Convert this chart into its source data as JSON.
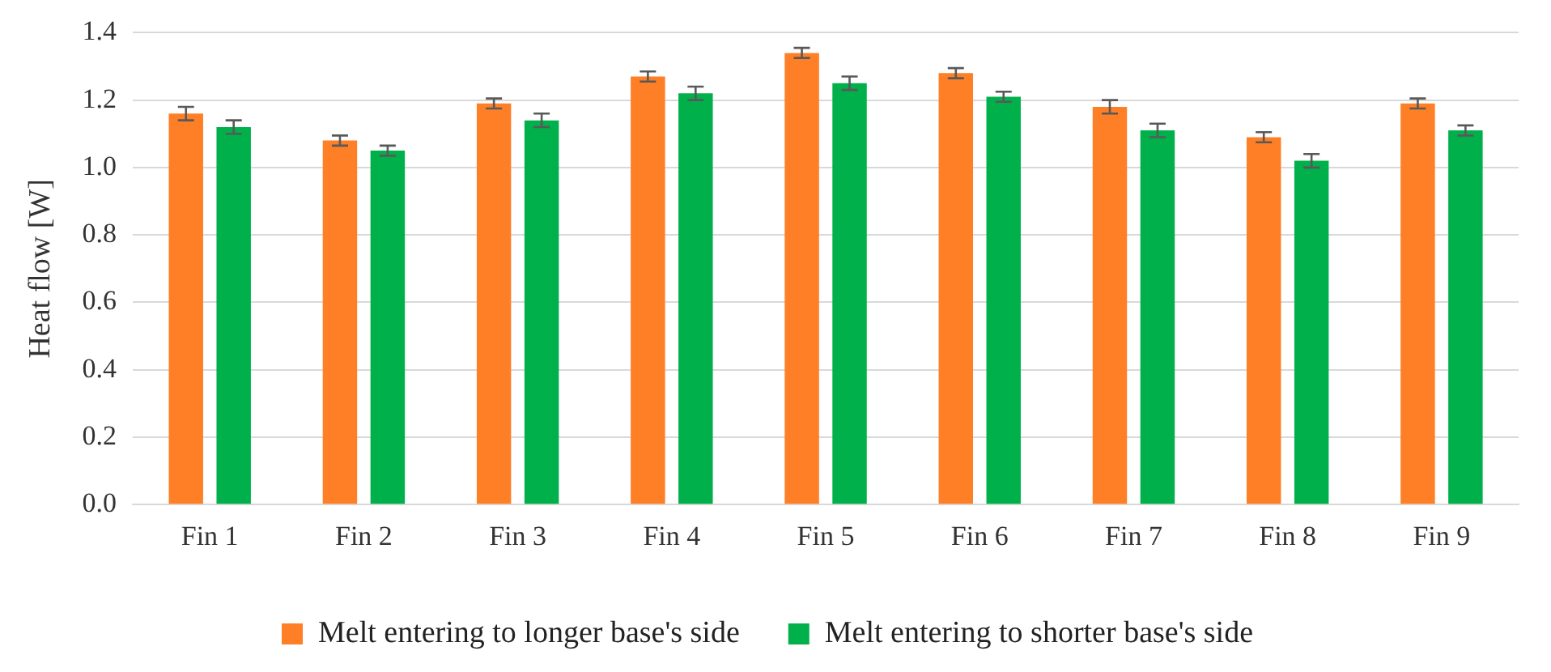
{
  "chart_data": {
    "type": "bar",
    "ylabel": "Heat flow [W]",
    "categories": [
      "Fin 1",
      "Fin 2",
      "Fin 3",
      "Fin 4",
      "Fin 5",
      "Fin 6",
      "Fin 7",
      "Fin 8",
      "Fin 9"
    ],
    "series": [
      {
        "name": "Melt entering to longer base's side",
        "color": "#fe7f26",
        "values": [
          1.16,
          1.08,
          1.19,
          1.27,
          1.34,
          1.28,
          1.18,
          1.09,
          1.19
        ],
        "errors": [
          0.02,
          0.015,
          0.015,
          0.015,
          0.015,
          0.015,
          0.02,
          0.015,
          0.015
        ]
      },
      {
        "name": "Melt entering to shorter base's side",
        "color": "#00b04a",
        "values": [
          1.12,
          1.05,
          1.14,
          1.22,
          1.25,
          1.21,
          1.11,
          1.02,
          1.11
        ],
        "errors": [
          0.02,
          0.015,
          0.02,
          0.02,
          0.02,
          0.015,
          0.02,
          0.02,
          0.015
        ]
      }
    ],
    "ylim": [
      0,
      1.4
    ],
    "yticks": [
      {
        "value": 0,
        "label": "0.0"
      },
      {
        "value": 0.2,
        "label": "0.2"
      },
      {
        "value": 0.4,
        "label": "0.4"
      },
      {
        "value": 0.6,
        "label": "0.6"
      },
      {
        "value": 0.8,
        "label": "0.8"
      },
      {
        "value": 1,
        "label": "1.0"
      },
      {
        "value": 1.2,
        "label": "1.2"
      },
      {
        "value": 1.4,
        "label": "1.4"
      }
    ],
    "grid": "y",
    "legend": "bottom"
  }
}
